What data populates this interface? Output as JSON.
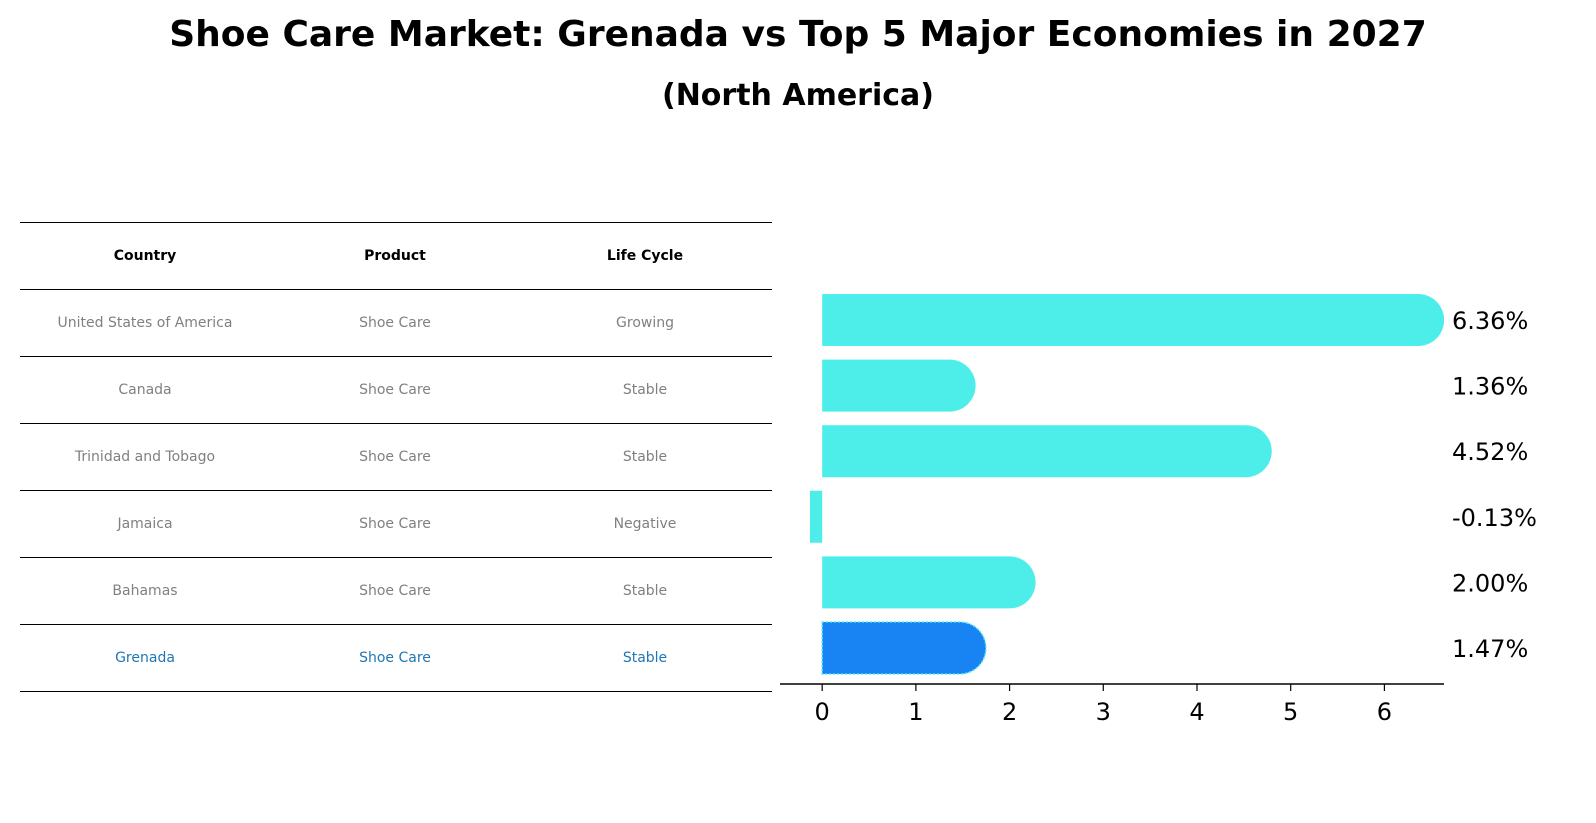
{
  "title": "Shoe Care Market: Grenada vs Top 5 Major Economies in 2027",
  "subtitle": "(North America)",
  "table": {
    "headers": [
      "Country",
      "Product",
      "Life Cycle"
    ],
    "rows": [
      [
        "United States of America",
        "Shoe Care",
        "Growing"
      ],
      [
        "Canada",
        "Shoe Care",
        "Stable"
      ],
      [
        "Trinidad and Tobago",
        "Shoe Care",
        "Stable"
      ],
      [
        "Jamaica",
        "Shoe Care",
        "Negative"
      ],
      [
        "Bahamas",
        "Shoe Care",
        "Stable"
      ],
      [
        "Grenada",
        "Shoe Care",
        "Stable"
      ]
    ],
    "highlight_row": 5
  },
  "chart_data": {
    "type": "bar",
    "orientation": "horizontal",
    "categories": [
      "United States of America",
      "Canada",
      "Trinidad and Tobago",
      "Jamaica",
      "Bahamas",
      "Grenada"
    ],
    "values": [
      6.36,
      1.36,
      4.52,
      -0.13,
      2.0,
      1.47
    ],
    "value_labels": [
      "6.36%",
      "1.36%",
      "4.52%",
      "-0.13%",
      "2.00%",
      "1.47%"
    ],
    "xlim": [
      -0.45,
      6.7
    ],
    "xticks": [
      0,
      1,
      2,
      3,
      4,
      5,
      6
    ],
    "highlight_index": 5,
    "colors": {
      "default": "#4dedea",
      "highlight": "#1884f4"
    }
  }
}
